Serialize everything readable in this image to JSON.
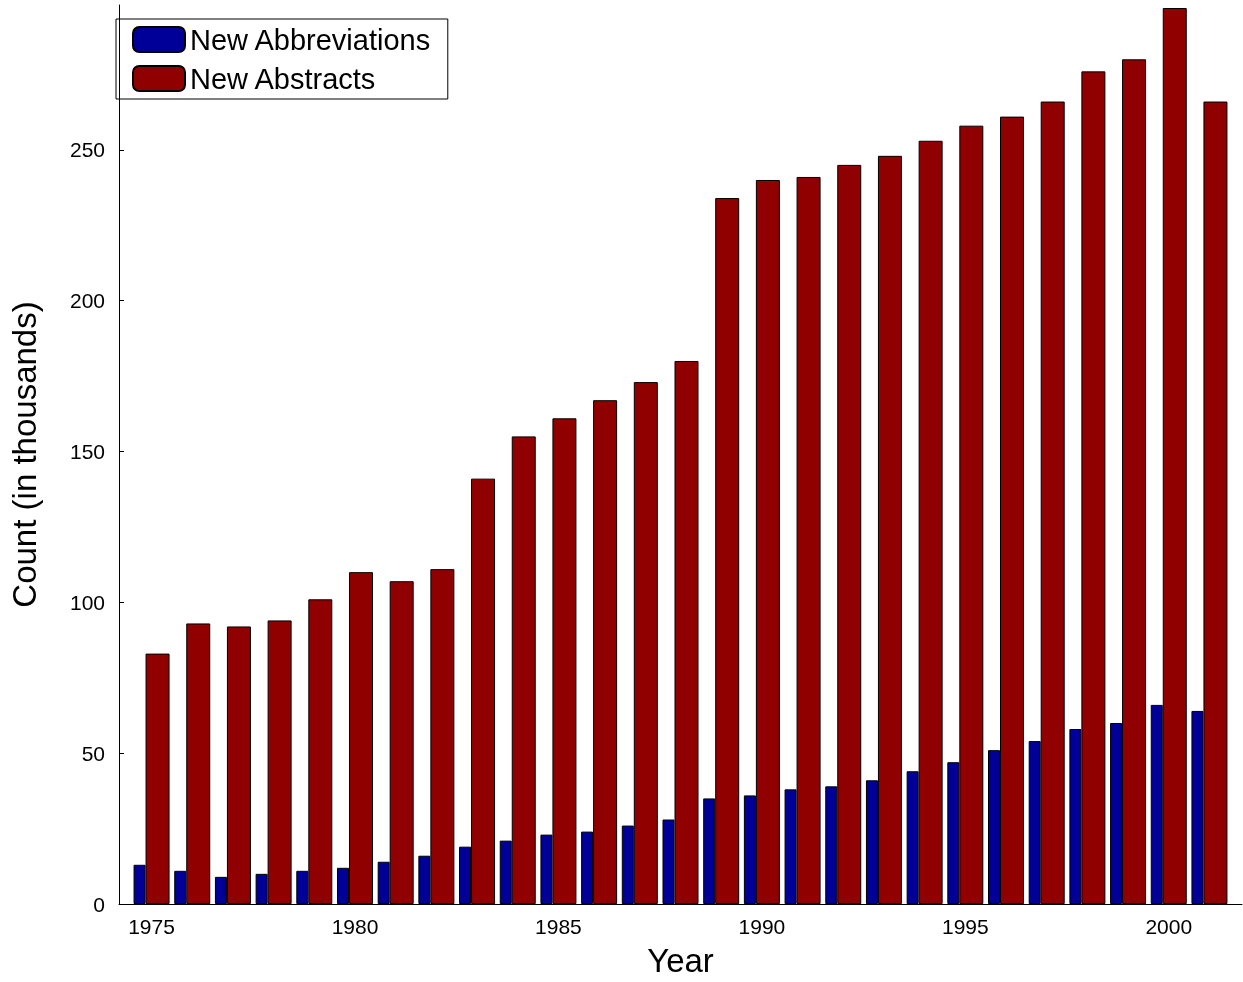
{
  "chart_data": {
    "type": "bar",
    "xlabel": "Year",
    "ylabel": "Count (in thousands)",
    "x": [
      1975,
      1976,
      1977,
      1978,
      1979,
      1980,
      1981,
      1982,
      1983,
      1984,
      1985,
      1986,
      1987,
      1988,
      1989,
      1990,
      1991,
      1992,
      1993,
      1994,
      1995,
      1996,
      1997,
      1998,
      1999,
      2000,
      2001
    ],
    "series": [
      {
        "name": "New Abbreviations",
        "color": "#000099",
        "values": [
          13,
          11,
          9,
          10,
          11,
          12,
          14,
          16,
          19,
          21,
          23,
          24,
          26,
          28,
          35,
          36,
          38,
          39,
          41,
          44,
          47,
          51,
          54,
          58,
          60,
          66,
          64
        ]
      },
      {
        "name": "New Abstracts",
        "color": "#910000",
        "values": [
          83,
          93,
          92,
          94,
          101,
          110,
          107,
          111,
          141,
          155,
          161,
          167,
          173,
          180,
          234,
          240,
          241,
          245,
          248,
          253,
          258,
          261,
          266,
          276,
          280,
          297,
          266
        ]
      }
    ],
    "xlim": [
      1974.2,
      2001.8
    ],
    "xticks": [
      1975,
      1980,
      1985,
      1990,
      1995,
      2000
    ],
    "ylim": [
      0,
      298
    ],
    "yticks": [
      0,
      50,
      100,
      150,
      200,
      250
    ],
    "grid": false,
    "legend": "top left"
  }
}
